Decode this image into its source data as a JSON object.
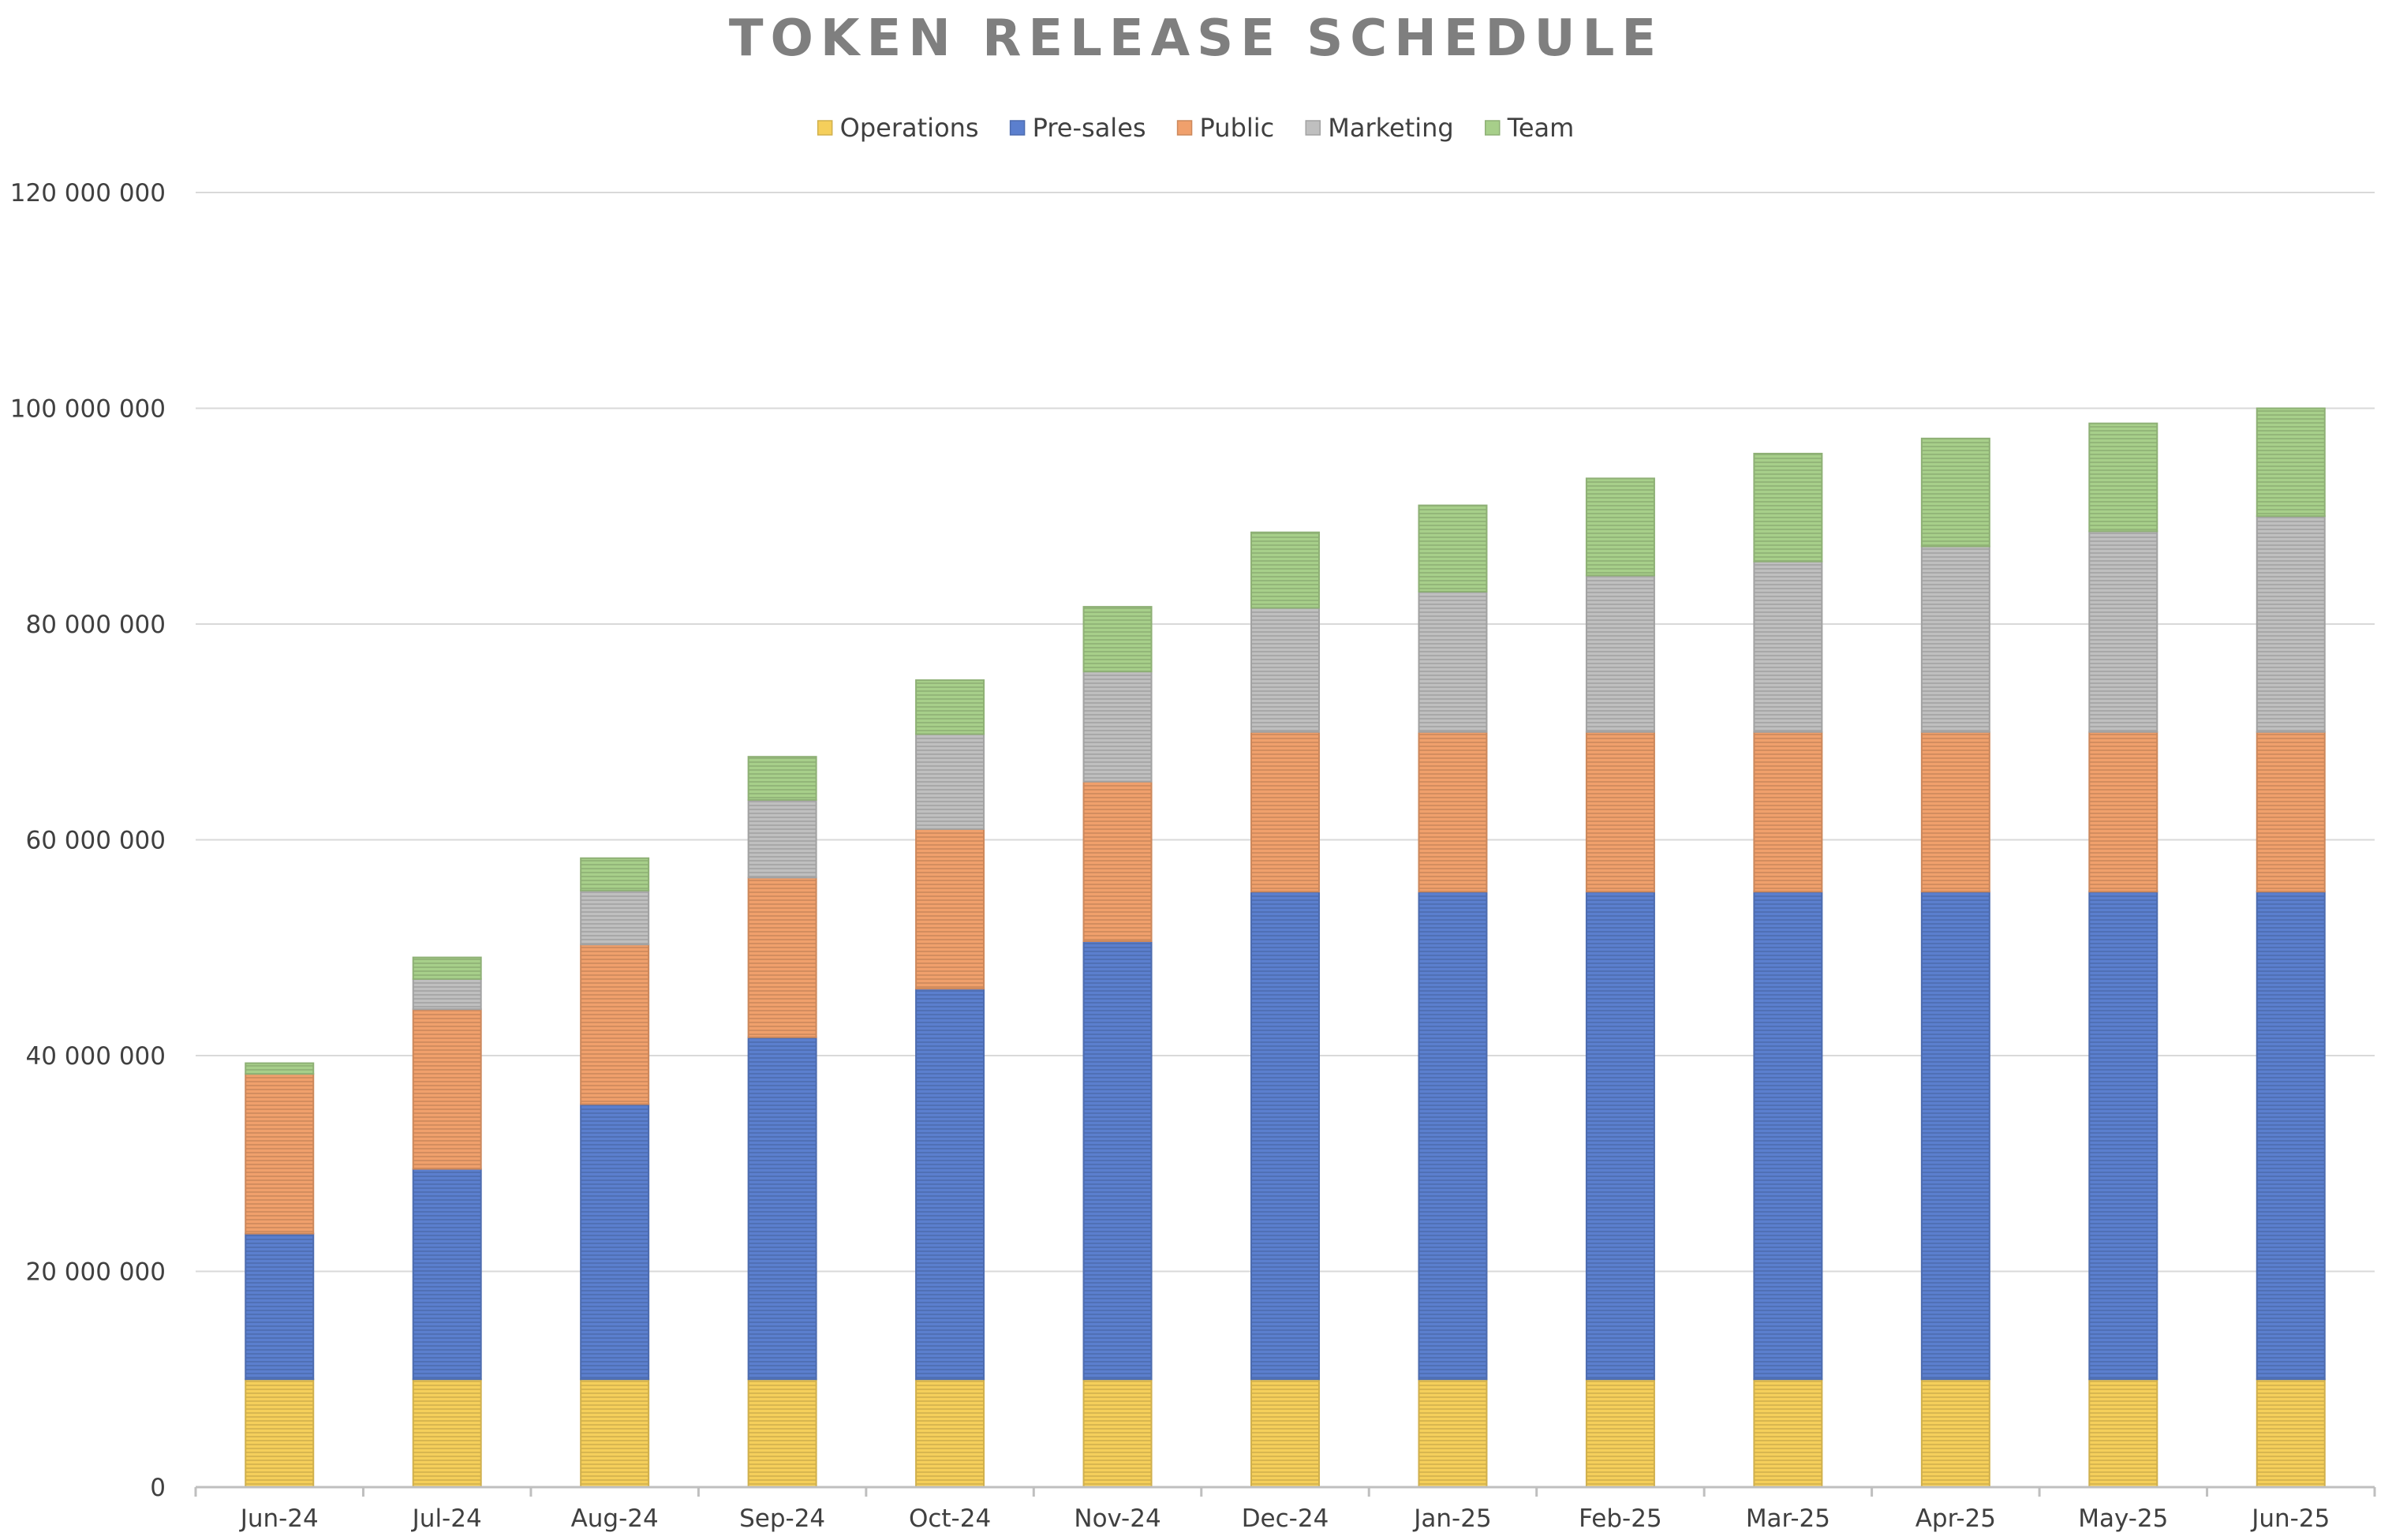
{
  "chart_data": {
    "type": "bar",
    "stacked": true,
    "title": "TOKEN RELEASE SCHEDULE",
    "xlabel": "",
    "ylabel": "",
    "ylim": [
      0,
      120000000
    ],
    "yticks": [
      0,
      20000000,
      40000000,
      60000000,
      80000000,
      100000000,
      120000000
    ],
    "ytick_labels": [
      "0",
      "20 000 000",
      "40 000 000",
      "60 000 000",
      "80 000 000",
      "100 000 000",
      "120 000 000"
    ],
    "grid": true,
    "legend_position": "top-center",
    "categories": [
      "Jun-24",
      "Jul-24",
      "Aug-24",
      "Sep-24",
      "Oct-24",
      "Nov-24",
      "Dec-24",
      "Jan-25",
      "Feb-25",
      "Mar-25",
      "Apr-25",
      "May-25",
      "Jun-25"
    ],
    "series": [
      {
        "name": "Operations",
        "color": "#f5cf5b",
        "values": [
          10000000,
          10000000,
          10000000,
          10000000,
          10000000,
          10000000,
          10000000,
          10000000,
          10000000,
          10000000,
          10000000,
          10000000,
          10000000
        ]
      },
      {
        "name": "Pre-sales",
        "color": "#5b7fce",
        "values": [
          13500000,
          19500000,
          25500000,
          31700000,
          36200000,
          40600000,
          45200000,
          45200000,
          45200000,
          45200000,
          45200000,
          45200000,
          45200000
        ]
      },
      {
        "name": "Public",
        "color": "#f0a06c",
        "values": [
          14800000,
          14800000,
          14800000,
          14800000,
          14800000,
          14800000,
          14800000,
          14800000,
          14800000,
          14800000,
          14800000,
          14800000,
          14800000
        ]
      },
      {
        "name": "Marketing",
        "color": "#bfbfbf",
        "values": [
          0,
          2800000,
          5000000,
          7200000,
          8800000,
          10200000,
          11500000,
          13000000,
          14500000,
          15800000,
          17200000,
          18600000,
          20000000
        ]
      },
      {
        "name": "Team",
        "color": "#a7cf8a",
        "values": [
          1000000,
          2000000,
          3000000,
          4000000,
          5000000,
          6000000,
          7000000,
          8000000,
          9000000,
          10000000,
          10000000,
          10000000,
          10000000
        ]
      }
    ]
  }
}
